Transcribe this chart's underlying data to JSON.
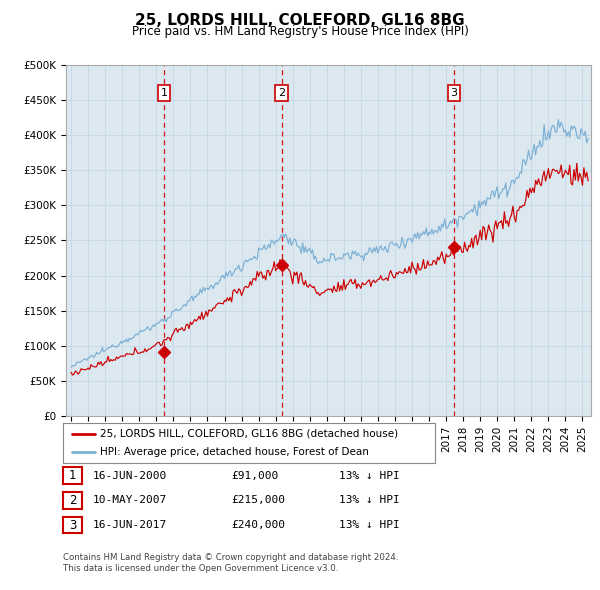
{
  "title": "25, LORDS HILL, COLEFORD, GL16 8BG",
  "subtitle": "Price paid vs. HM Land Registry's House Price Index (HPI)",
  "legend_line1": "25, LORDS HILL, COLEFORD, GL16 8BG (detached house)",
  "legend_line2": "HPI: Average price, detached house, Forest of Dean",
  "footnote1": "Contains HM Land Registry data © Crown copyright and database right 2024.",
  "footnote2": "This data is licensed under the Open Government Licence v3.0.",
  "table": [
    {
      "num": "1",
      "date": "16-JUN-2000",
      "price": "£91,000",
      "note": "13% ↓ HPI"
    },
    {
      "num": "2",
      "date": "10-MAY-2007",
      "price": "£215,000",
      "note": "13% ↓ HPI"
    },
    {
      "num": "3",
      "date": "16-JUN-2017",
      "price": "£240,000",
      "note": "13% ↓ HPI"
    }
  ],
  "sale_dates": [
    2000.46,
    2007.36,
    2017.46
  ],
  "sale_prices": [
    91000,
    215000,
    240000
  ],
  "hpi_color": "#7bafd4",
  "price_color": "#cc0000",
  "vline_color": "#cc0000",
  "grid_color": "#c8d8e8",
  "bg_color": "#dce8f0",
  "ylim": [
    0,
    500000
  ],
  "xlim_start": 1994.7,
  "xlim_end": 2025.5,
  "yticks": [
    0,
    50000,
    100000,
    150000,
    200000,
    250000,
    300000,
    350000,
    400000,
    450000,
    500000
  ],
  "ytick_labels": [
    "£0",
    "£50K",
    "£100K",
    "£150K",
    "£200K",
    "£250K",
    "£300K",
    "£350K",
    "£400K",
    "£450K",
    "£500K"
  ],
  "xticks": [
    1995,
    1996,
    1997,
    1998,
    1999,
    2000,
    2001,
    2002,
    2003,
    2004,
    2005,
    2006,
    2007,
    2008,
    2009,
    2010,
    2011,
    2012,
    2013,
    2014,
    2015,
    2016,
    2017,
    2018,
    2019,
    2020,
    2021,
    2022,
    2023,
    2024,
    2025
  ]
}
